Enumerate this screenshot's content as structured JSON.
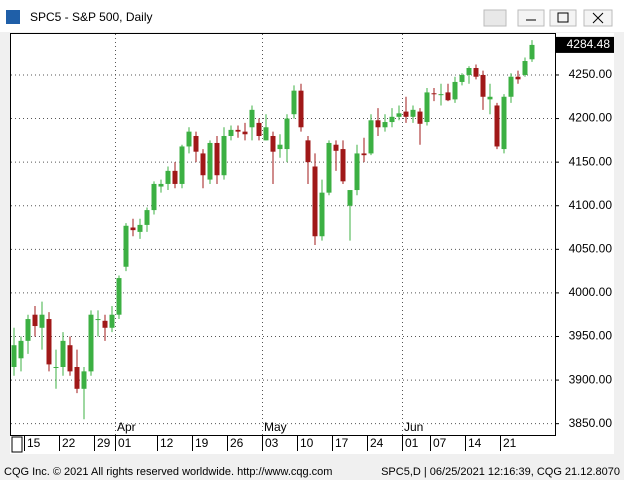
{
  "window_title": "SPC5 - S&P 500, Daily",
  "footer_left": "CQG Inc. © 2021 All rights reserved worldwide. http://www.cqg.com",
  "footer_right": "SPC5,D | 06/25/2021 12:16:39, CQG 21.12.8070",
  "chart_data": {
    "type": "candlestick",
    "categories": [
      null,
      null,
      "15",
      null,
      null,
      null,
      null,
      "22",
      null,
      null,
      null,
      null,
      "29",
      null,
      null,
      "01",
      null,
      null,
      null,
      null,
      null,
      "12",
      null,
      null,
      null,
      null,
      "19",
      null,
      null,
      null,
      null,
      "26",
      null,
      null,
      null,
      null,
      "03",
      null,
      null,
      null,
      null,
      "10",
      null,
      null,
      null,
      null,
      "17",
      null,
      null,
      null,
      null,
      "24",
      null,
      null,
      null,
      null,
      "01",
      null,
      null,
      null,
      "07",
      null,
      null,
      null,
      null,
      "14",
      null,
      null,
      null,
      null,
      "21",
      null,
      null,
      null,
      null
    ],
    "months": [
      null,
      null,
      null,
      null,
      null,
      null,
      null,
      null,
      null,
      null,
      null,
      null,
      null,
      null,
      null,
      "Apr",
      null,
      null,
      null,
      null,
      null,
      null,
      null,
      null,
      null,
      null,
      null,
      null,
      null,
      null,
      null,
      null,
      null,
      null,
      null,
      null,
      "May",
      null,
      null,
      null,
      null,
      null,
      null,
      null,
      null,
      null,
      null,
      null,
      null,
      null,
      null,
      null,
      null,
      null,
      null,
      null,
      "Jun",
      null,
      null,
      null,
      null,
      null,
      null,
      null,
      null,
      null,
      null,
      null,
      null,
      null,
      null,
      null,
      null,
      null,
      null
    ],
    "open": [
      3915,
      3925,
      3945,
      3975,
      3960,
      3970,
      3915,
      3915,
      3940,
      3915,
      3890,
      3910,
      3970,
      3968,
      3960,
      3975,
      4030,
      4075,
      4070,
      4078,
      4095,
      4122,
      4125,
      4140,
      4125,
      4168,
      4180,
      4160,
      4130,
      4172,
      4135,
      4180,
      4187,
      4185,
      4190,
      4195,
      4175,
      4180,
      4165,
      4165,
      4205,
      4232,
      4175,
      4145,
      4065,
      4115,
      4170,
      4165,
      4100,
      4118,
      4160,
      4160,
      4198,
      4190,
      4196,
      4202,
      4208,
      4202,
      4208,
      4196,
      4229,
      4228,
      4230,
      4222,
      4242,
      4250,
      4258,
      4250,
      4222,
      4215,
      4165,
      4225,
      4248,
      4250,
      4268
    ],
    "high": [
      3960,
      3950,
      3975,
      3985,
      3990,
      3978,
      3935,
      3955,
      3950,
      3935,
      3915,
      3980,
      3980,
      3975,
      3985,
      4020,
      4080,
      4085,
      4085,
      4098,
      4128,
      4130,
      4145,
      4150,
      4170,
      4190,
      4185,
      4165,
      4175,
      4180,
      4190,
      4192,
      4192,
      4195,
      4215,
      4200,
      4205,
      4185,
      4182,
      4205,
      4238,
      4240,
      4180,
      4160,
      4130,
      4175,
      4175,
      4175,
      4115,
      4170,
      4178,
      4205,
      4212,
      4205,
      4212,
      4215,
      4225,
      4215,
      4212,
      4235,
      4235,
      4240,
      4240,
      4248,
      4252,
      4260,
      4262,
      4255,
      4240,
      4218,
      4228,
      4252,
      4255,
      4270,
      4290
    ],
    "low": [
      3905,
      3910,
      3930,
      3950,
      3935,
      3910,
      3890,
      3905,
      3905,
      3885,
      3855,
      3905,
      3950,
      3945,
      3955,
      3970,
      4025,
      4065,
      4062,
      4070,
      4090,
      4115,
      4118,
      4120,
      4120,
      4160,
      4150,
      4120,
      4125,
      4125,
      4130,
      4175,
      4178,
      4175,
      4175,
      4175,
      4175,
      4125,
      4155,
      4150,
      4200,
      4185,
      4125,
      4055,
      4060,
      4112,
      4140,
      4125,
      4060,
      4112,
      4150,
      4158,
      4180,
      4185,
      4190,
      4198,
      4195,
      4195,
      4170,
      4192,
      4220,
      4215,
      4220,
      4218,
      4238,
      4240,
      4245,
      4210,
      4205,
      4165,
      4160,
      4218,
      4240,
      4248,
      4265
    ],
    "close": [
      3940,
      3945,
      3970,
      3962,
      3975,
      3918,
      3915,
      3945,
      3910,
      3890,
      3910,
      3975,
      3970,
      3960,
      3975,
      4017,
      4077,
      4072,
      4078,
      4095,
      4125,
      4125,
      4140,
      4125,
      4168,
      4185,
      4162,
      4135,
      4172,
      4135,
      4180,
      4187,
      4185,
      4182,
      4210,
      4180,
      4190,
      4162,
      4170,
      4200,
      4232,
      4190,
      4150,
      4065,
      4115,
      4172,
      4163,
      4128,
      4118,
      4160,
      4158,
      4198,
      4190,
      4196,
      4202,
      4206,
      4202,
      4210,
      4194,
      4230,
      4228,
      4228,
      4221,
      4242,
      4250,
      4258,
      4248,
      4225,
      4225,
      4168,
      4225,
      4248,
      4245,
      4266,
      4284.48
    ],
    "last_label": "4284.48",
    "up_color": "#3cb043",
    "down_color": "#a01818",
    "ylim": [
      3837,
      4297
    ],
    "yticks": [
      {
        "value": 3850,
        "label": "3850.00"
      },
      {
        "value": 3900,
        "label": "3900.00"
      },
      {
        "value": 3950,
        "label": "3950.00"
      },
      {
        "value": 4000,
        "label": "4000.00"
      },
      {
        "value": 4050,
        "label": "4050.00"
      },
      {
        "value": 4100,
        "label": "4100.00"
      },
      {
        "value": 4150,
        "label": "4150.00"
      },
      {
        "value": 4200,
        "label": "4200.00"
      },
      {
        "value": 4250,
        "label": "4250.00"
      }
    ],
    "grid": true
  }
}
